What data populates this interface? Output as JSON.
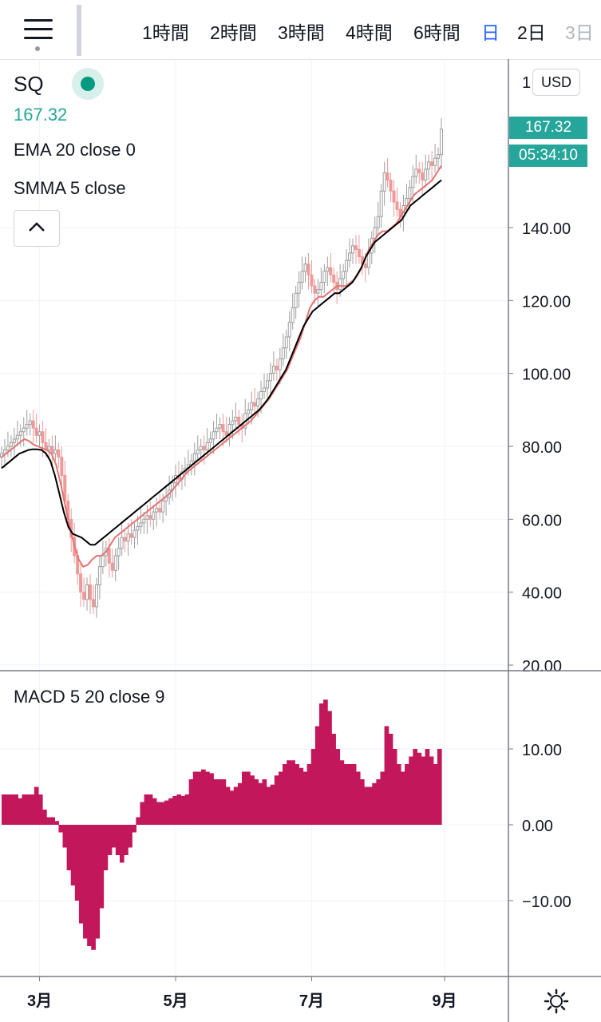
{
  "toolbar": {
    "intervals": [
      {
        "label": "1時間",
        "state": "normal"
      },
      {
        "label": "2時間",
        "state": "normal"
      },
      {
        "label": "3時間",
        "state": "normal"
      },
      {
        "label": "4時間",
        "state": "normal"
      },
      {
        "label": "6時間",
        "state": "normal"
      },
      {
        "label": "日",
        "state": "active"
      },
      {
        "label": "2日",
        "state": "normal"
      },
      {
        "label": "3日",
        "state": "faded"
      }
    ]
  },
  "legend": {
    "symbol": "SQ",
    "last_price": "167.32",
    "indicator_1": "EMA 20 close 0",
    "indicator_2": "SMMA 5 close",
    "macd": "MACD 5 20 close 9"
  },
  "price_scale": {
    "currency": "USD",
    "last_price_tag": "167.32",
    "countdown_tag": "05:34:10",
    "top_partial": "1"
  },
  "colors": {
    "up": "#26a69a",
    "up_candle": "#9e9e9e",
    "down_candle": "#ef9a9a",
    "ema": "#e57373",
    "smma": "#000000",
    "macd_hist": "#c2185b",
    "grid": "#f0f3fa"
  },
  "chart_data": [
    {
      "type": "candlestick",
      "title": "SQ",
      "ylim": [
        20,
        180
      ],
      "yticks": [
        20,
        40,
        60,
        80,
        100,
        120,
        140
      ],
      "ytick_labels": [
        "20.00",
        "40.00",
        "60.00",
        "80.00",
        "100.00",
        "120.00",
        "140.00"
      ],
      "xticks": [
        "3月",
        "5月",
        "7月",
        "9月"
      ],
      "x_tick_index": [
        12,
        55,
        98,
        140
      ],
      "close": [
        78,
        79,
        80,
        81,
        82,
        83,
        84,
        85,
        86,
        87,
        85,
        83,
        84,
        81,
        79,
        80,
        78,
        79,
        77,
        72,
        65,
        60,
        55,
        50,
        45,
        40,
        38,
        42,
        38,
        36,
        42,
        47,
        50,
        52,
        48,
        46,
        50,
        52,
        55,
        54,
        56,
        55,
        57,
        58,
        59,
        60,
        61,
        60,
        62,
        63,
        62,
        65,
        66,
        68,
        70,
        72,
        71,
        73,
        74,
        75,
        76,
        78,
        79,
        80,
        79,
        81,
        82,
        84,
        85,
        86,
        84,
        83,
        86,
        87,
        88,
        86,
        85,
        89,
        90,
        92,
        91,
        93,
        95,
        96,
        98,
        100,
        102,
        101,
        104,
        107,
        110,
        114,
        118,
        122,
        125,
        128,
        130,
        127,
        124,
        122,
        123,
        125,
        128,
        129,
        127,
        125,
        123,
        126,
        128,
        131,
        133,
        135,
        134,
        132,
        130,
        129,
        133,
        137,
        140,
        143,
        150,
        155,
        153,
        150,
        147,
        145,
        143,
        146,
        148,
        151,
        154,
        156,
        155,
        153,
        156,
        158,
        157,
        159,
        160,
        167
      ],
      "series": [
        {
          "name": "EMA 20 close 0",
          "values": [
            77,
            78,
            79,
            80,
            81,
            82,
            81.5,
            80.5,
            80,
            79.5,
            79,
            78,
            75,
            70,
            64,
            58,
            53,
            49,
            47,
            47.5,
            49,
            50,
            50,
            51,
            53,
            55,
            56,
            57,
            58,
            59,
            60,
            61,
            62,
            63,
            64,
            65,
            66,
            67,
            68.5,
            70,
            71.5,
            73,
            74,
            75,
            76,
            77,
            78,
            79,
            80,
            81,
            82,
            83,
            84,
            85,
            86,
            87,
            88.5,
            90,
            91.5,
            93,
            95,
            97,
            99,
            101,
            104,
            107,
            110,
            114,
            118,
            120,
            121,
            121,
            122,
            123,
            124,
            124,
            124,
            125,
            126,
            128,
            131,
            134,
            136,
            138,
            139,
            139,
            140,
            141,
            143,
            145,
            147,
            149,
            150,
            151,
            152,
            153,
            155,
            157
          ]
        },
        {
          "name": "SMMA 5 close",
          "values": [
            74,
            75,
            76,
            77,
            78,
            78.5,
            79,
            79.2,
            79.2,
            79,
            78,
            76,
            72,
            67,
            62,
            58,
            56,
            55.5,
            55,
            54,
            53,
            53,
            54,
            55,
            56,
            57,
            58,
            59,
            60,
            61,
            62,
            63,
            64,
            65,
            66,
            67,
            68,
            69,
            70,
            71,
            72,
            73,
            74,
            75,
            76,
            77,
            78,
            79,
            80,
            81,
            82,
            83,
            84,
            85,
            86,
            87,
            88,
            89,
            90,
            91.5,
            93,
            95,
            97,
            99,
            101,
            104,
            107,
            110,
            113,
            115,
            117,
            118,
            119,
            120,
            121,
            122,
            122,
            123,
            124,
            125,
            127,
            129,
            132,
            134,
            136,
            137,
            138,
            139,
            140,
            141,
            142,
            144,
            146,
            147,
            148,
            149,
            150,
            151,
            152,
            153
          ]
        }
      ]
    },
    {
      "type": "bar",
      "title": "MACD 5 20 close 9",
      "ylim": [
        -20,
        20
      ],
      "yticks": [
        -10,
        0,
        10
      ],
      "ytick_labels": [
        "−10.00",
        "0.00",
        "10.00"
      ],
      "values": [
        4,
        4,
        4,
        4,
        3.5,
        4,
        4,
        4,
        5,
        4,
        2,
        1,
        1,
        0.5,
        -1,
        -3,
        -6,
        -8,
        -10,
        -13,
        -15,
        -16,
        -16.5,
        -15,
        -11,
        -6,
        -4,
        -3,
        -4,
        -5,
        -4,
        -3,
        -1,
        1,
        3,
        4,
        4,
        3.5,
        3,
        3,
        3.2,
        3.5,
        3.8,
        4,
        3.8,
        4,
        6,
        7,
        7,
        7.3,
        7,
        6.8,
        6,
        6,
        6,
        5,
        4.5,
        5,
        5.5,
        7,
        7,
        6.5,
        6,
        5.5,
        6,
        5,
        5.3,
        6.5,
        7,
        8,
        8.5,
        8.5,
        8,
        7.5,
        7,
        8,
        10,
        13,
        16,
        16.5,
        15,
        12,
        10,
        8.5,
        8,
        8,
        8,
        7,
        6,
        5,
        5,
        5.5,
        6,
        7,
        13,
        12,
        10,
        8,
        7,
        8,
        9,
        10,
        9.5,
        9,
        10,
        9,
        8,
        10
      ]
    }
  ]
}
